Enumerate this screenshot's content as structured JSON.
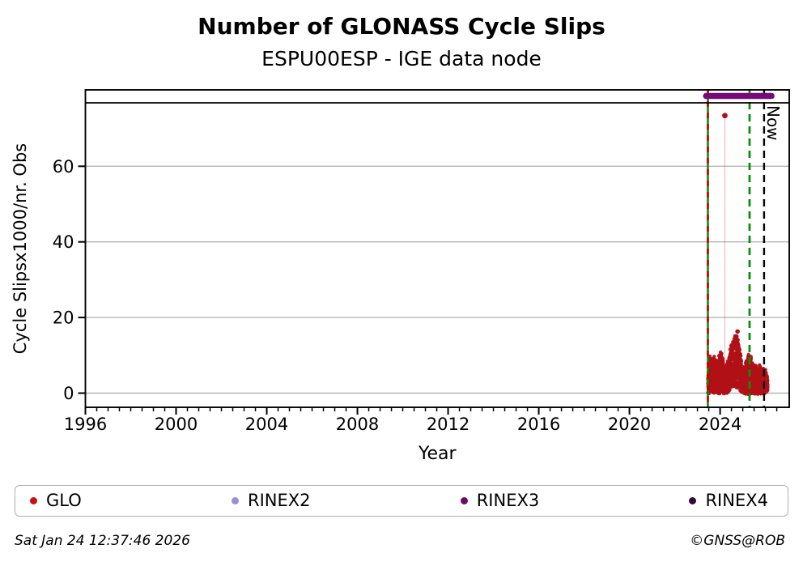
{
  "title": "Number of GLONASS Cycle Slips",
  "subtitle": "ESPU00ESP - IGE data node",
  "footer": {
    "timestamp": "Sat Jan 24 12:37:46 2026",
    "credit": "©GNSS@ROB"
  },
  "legend": [
    {
      "label": "GLO",
      "color": "#c90f0f"
    },
    {
      "label": "RINEX2",
      "color": "#9292d8"
    },
    {
      "label": "RINEX3",
      "color": "#6a0d6a"
    },
    {
      "label": "RINEX4",
      "color": "#310b3b"
    }
  ],
  "chart_data": {
    "type": "scatter",
    "title": "Number of GLONASS Cycle Slips",
    "subtitle": "ESPU00ESP - IGE data node",
    "xlabel": "Year",
    "ylabel": "Cycle Slipsx1000/nr. Obs",
    "xlim": [
      1996,
      2027.05
    ],
    "ylim": [
      -3.75,
      80.2
    ],
    "xticks": [
      1996,
      2000,
      2004,
      2008,
      2012,
      2016,
      2020,
      2024
    ],
    "x_minor_step": 0.5,
    "yticks": [
      0,
      20,
      40,
      60
    ],
    "grid": "horizontal-gridlines",
    "grid_color": "#b5b5b5",
    "legend_position": "bottom",
    "series": [
      {
        "name": "GLO",
        "color": "#b11116",
        "marker": "dot",
        "outlier_points": [
          {
            "x": 2024.21,
            "y": 73.4
          }
        ],
        "peak_points": [
          {
            "x": 2024.77,
            "y": 16.3
          },
          {
            "x": 2024.72,
            "y": 15.0
          }
        ],
        "dropline": {
          "x": 2024.21,
          "y_top": 73.4,
          "y_bottom": 4.0
        },
        "cluster_envelope": [
          [
            2023.46,
            -0.3,
            8.5
          ],
          [
            2023.56,
            0.0,
            10.2
          ],
          [
            2023.66,
            0.3,
            8.8
          ],
          [
            2023.76,
            -0.2,
            10.6
          ],
          [
            2023.86,
            0.2,
            8.2
          ],
          [
            2023.96,
            -0.3,
            11.0
          ],
          [
            2024.06,
            0.2,
            11.4
          ],
          [
            2024.16,
            -0.2,
            8.2
          ],
          [
            2024.26,
            -0.3,
            7.0
          ],
          [
            2024.36,
            0.3,
            9.5
          ],
          [
            2024.46,
            0.8,
            12.5
          ],
          [
            2024.56,
            1.2,
            14.2
          ],
          [
            2024.66,
            1.8,
            16.0
          ],
          [
            2024.76,
            1.2,
            15.2
          ],
          [
            2024.86,
            0.8,
            12.2
          ],
          [
            2024.96,
            0.2,
            8.2
          ],
          [
            2025.06,
            -0.2,
            6.0
          ],
          [
            2025.16,
            -0.3,
            9.5
          ],
          [
            2025.26,
            -0.3,
            11.3
          ],
          [
            2025.36,
            -0.2,
            9.8
          ],
          [
            2025.46,
            -0.3,
            7.6
          ],
          [
            2025.56,
            -0.2,
            8.4
          ],
          [
            2025.66,
            -0.3,
            7.0
          ],
          [
            2025.76,
            -0.2,
            7.8
          ],
          [
            2025.86,
            -0.3,
            6.4
          ],
          [
            2025.96,
            -0.2,
            6.8
          ],
          [
            2026.06,
            0.2,
            5.5
          ],
          [
            2026.1,
            0.8,
            4.5
          ]
        ],
        "points_per_year": 840,
        "seed": 1234
      }
    ],
    "annotations": {
      "vlines": [
        {
          "x": 2023.46,
          "style": "solid-with-red-dashes",
          "color": "#0a8f0a",
          "overlay_color": "#cc0000",
          "name": "data-start-line"
        },
        {
          "x": 2025.3,
          "style": "dashed",
          "color": "#0a8f0a",
          "name": "file-change-line"
        },
        {
          "x": 2025.94,
          "style": "dashed",
          "color": "#000000",
          "label": "Now",
          "name": "now-line"
        }
      ],
      "availability_bar": {
        "label": "RINEX3",
        "x0": 2023.38,
        "x1": 2026.27,
        "color": "#760a76",
        "y_value": 78.6
      },
      "top_separator_y": 76.8
    }
  }
}
